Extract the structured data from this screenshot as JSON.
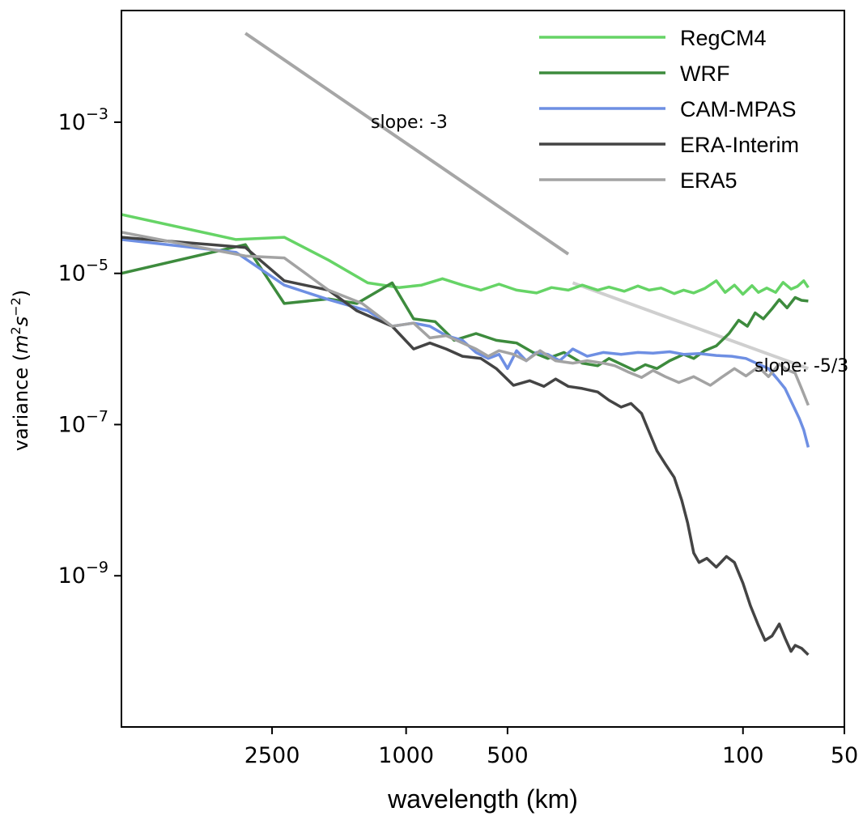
{
  "chart_data": {
    "type": "line",
    "title": "",
    "xlabel": "wavelength (km)",
    "ylabel": "variance",
    "ylabel_units": "(m²s⁻²)",
    "x_scale": "log-reciprocal",
    "y_scale": "log",
    "xlim": [
      7000,
      50
    ],
    "ylim": [
      1e-11,
      0.03
    ],
    "x_ticks": [
      2500,
      1000,
      500,
      100,
      50
    ],
    "x_tick_labels": [
      "2500",
      "1000",
      "500",
      "100",
      "50"
    ],
    "y_ticks": [
      0.001,
      1e-05,
      1e-07,
      1e-09
    ],
    "y_tick_labels": [
      {
        "base": "10",
        "exp": "−3"
      },
      {
        "base": "10",
        "exp": "−5"
      },
      {
        "base": "10",
        "exp": "−7"
      },
      {
        "base": "10",
        "exp": "−9"
      }
    ],
    "grid": false,
    "legend_position": "top-right",
    "series": [
      {
        "name": "RegCM4",
        "color": "#66d466",
        "points": [
          [
            7000,
            6e-05
          ],
          [
            3200,
            2.8e-05
          ],
          [
            2300,
            3e-05
          ],
          [
            1700,
            1.5e-05
          ],
          [
            1300,
            7.5e-06
          ],
          [
            1050,
            6.5e-06
          ],
          [
            900,
            7e-06
          ],
          [
            780,
            8.5e-06
          ],
          [
            680,
            7e-06
          ],
          [
            600,
            6e-06
          ],
          [
            530,
            7.2e-06
          ],
          [
            470,
            6e-06
          ],
          [
            410,
            5.5e-06
          ],
          [
            370,
            6.5e-06
          ],
          [
            330,
            6e-06
          ],
          [
            300,
            7e-06
          ],
          [
            270,
            6e-06
          ],
          [
            250,
            6.6e-06
          ],
          [
            225,
            5.8e-06
          ],
          [
            205,
            6.8e-06
          ],
          [
            190,
            6e-06
          ],
          [
            175,
            6.4e-06
          ],
          [
            160,
            5.4e-06
          ],
          [
            150,
            6e-06
          ],
          [
            140,
            5.5e-06
          ],
          [
            130,
            6.3e-06
          ],
          [
            120,
            8e-06
          ],
          [
            113,
            5.6e-06
          ],
          [
            106,
            7e-06
          ],
          [
            100,
            5.3e-06
          ],
          [
            94,
            6.9e-06
          ],
          [
            90,
            5.6e-06
          ],
          [
            85,
            6.4e-06
          ],
          [
            80,
            5.6e-06
          ],
          [
            76,
            7.6e-06
          ],
          [
            72,
            6.2e-06
          ],
          [
            69,
            6.7e-06
          ],
          [
            66,
            8e-06
          ],
          [
            64,
            6.5e-06
          ]
        ]
      },
      {
        "name": "WRF",
        "color": "#3d8b3d",
        "points": [
          [
            7000,
            1e-05
          ],
          [
            3000,
            2.4e-05
          ],
          [
            2300,
            4e-06
          ],
          [
            1700,
            4.6e-06
          ],
          [
            1400,
            4e-06
          ],
          [
            1100,
            7.5e-06
          ],
          [
            950,
            2.5e-06
          ],
          [
            820,
            2.3e-06
          ],
          [
            720,
            1.3e-06
          ],
          [
            620,
            1.6e-06
          ],
          [
            540,
            1.3e-06
          ],
          [
            470,
            1.2e-06
          ],
          [
            420,
            9e-07
          ],
          [
            380,
            7.5e-07
          ],
          [
            340,
            9e-07
          ],
          [
            300,
            6.5e-07
          ],
          [
            270,
            6e-07
          ],
          [
            250,
            7.5e-07
          ],
          [
            230,
            6.3e-07
          ],
          [
            210,
            5.2e-07
          ],
          [
            195,
            6.2e-07
          ],
          [
            180,
            5.5e-07
          ],
          [
            165,
            7e-07
          ],
          [
            150,
            8.5e-07
          ],
          [
            140,
            7.5e-07
          ],
          [
            130,
            9.5e-07
          ],
          [
            120,
            1.1e-06
          ],
          [
            110,
            1.6e-06
          ],
          [
            103,
            2.4e-06
          ],
          [
            97,
            2e-06
          ],
          [
            92,
            3e-06
          ],
          [
            87,
            2.5e-06
          ],
          [
            82,
            3.4e-06
          ],
          [
            78,
            4.5e-06
          ],
          [
            74,
            3.5e-06
          ],
          [
            70,
            4.8e-06
          ],
          [
            67,
            4.4e-06
          ],
          [
            64,
            4.3e-06
          ]
        ]
      },
      {
        "name": "CAM-MPAS",
        "color": "#6e8fe3",
        "points": [
          [
            7000,
            2.8e-05
          ],
          [
            3200,
            1.9e-05
          ],
          [
            2300,
            7e-06
          ],
          [
            1700,
            4.5e-06
          ],
          [
            1300,
            3.2e-06
          ],
          [
            1100,
            2e-06
          ],
          [
            950,
            2.2e-06
          ],
          [
            850,
            2e-06
          ],
          [
            760,
            1.5e-06
          ],
          [
            680,
            1.3e-06
          ],
          [
            620,
            9e-07
          ],
          [
            570,
            7.5e-07
          ],
          [
            530,
            8.5e-07
          ],
          [
            500,
            5.5e-07
          ],
          [
            470,
            9.5e-07
          ],
          [
            440,
            7e-07
          ],
          [
            410,
            9e-07
          ],
          [
            380,
            8.5e-07
          ],
          [
            350,
            7e-07
          ],
          [
            320,
            1e-06
          ],
          [
            290,
            8e-07
          ],
          [
            260,
            9e-07
          ],
          [
            230,
            8.5e-07
          ],
          [
            205,
            9e-07
          ],
          [
            185,
            8.8e-07
          ],
          [
            165,
            9.2e-07
          ],
          [
            150,
            8.5e-07
          ],
          [
            135,
            8.7e-07
          ],
          [
            120,
            8.2e-07
          ],
          [
            108,
            8e-07
          ],
          [
            98,
            7.5e-07
          ],
          [
            90,
            6.3e-07
          ],
          [
            84,
            5.5e-07
          ],
          [
            79,
            4e-07
          ],
          [
            75,
            3e-07
          ],
          [
            71,
            1.8e-07
          ],
          [
            68,
            1.2e-07
          ],
          [
            66,
            8.5e-08
          ],
          [
            64,
            5e-08
          ]
        ]
      },
      {
        "name": "ERA-Interim",
        "color": "#444444",
        "points": [
          [
            7000,
            3e-05
          ],
          [
            3000,
            2.2e-05
          ],
          [
            2300,
            8e-06
          ],
          [
            1700,
            6e-06
          ],
          [
            1400,
            3.2e-06
          ],
          [
            1100,
            2e-06
          ],
          [
            950,
            1e-06
          ],
          [
            850,
            1.2e-06
          ],
          [
            760,
            1e-06
          ],
          [
            680,
            8e-07
          ],
          [
            600,
            7.5e-07
          ],
          [
            540,
            5.5e-07
          ],
          [
            480,
            3.3e-07
          ],
          [
            430,
            3.8e-07
          ],
          [
            390,
            3.2e-07
          ],
          [
            360,
            4e-07
          ],
          [
            330,
            3.2e-07
          ],
          [
            300,
            3e-07
          ],
          [
            270,
            2.7e-07
          ],
          [
            250,
            2.1e-07
          ],
          [
            230,
            1.7e-07
          ],
          [
            215,
            1.9e-07
          ],
          [
            200,
            1.4e-07
          ],
          [
            190,
            8e-08
          ],
          [
            180,
            4.5e-08
          ],
          [
            170,
            3e-08
          ],
          [
            160,
            2e-08
          ],
          [
            152,
            1e-08
          ],
          [
            146,
            5e-09
          ],
          [
            140,
            2e-09
          ],
          [
            135,
            1.5e-09
          ],
          [
            128,
            1.7e-09
          ],
          [
            120,
            1.3e-09
          ],
          [
            112,
            1.8e-09
          ],
          [
            106,
            1.5e-09
          ],
          [
            100,
            8e-10
          ],
          [
            95,
            4e-10
          ],
          [
            90,
            2.2e-10
          ],
          [
            86,
            1.4e-10
          ],
          [
            82,
            1.6e-10
          ],
          [
            78,
            2.3e-10
          ],
          [
            75,
            1.5e-10
          ],
          [
            72,
            1e-10
          ],
          [
            70,
            1.2e-10
          ],
          [
            67,
            1.1e-10
          ],
          [
            64,
            9e-11
          ]
        ]
      },
      {
        "name": "ERA5",
        "color": "#a3a3a3",
        "points": [
          [
            7000,
            3.5e-05
          ],
          [
            3000,
            1.7e-05
          ],
          [
            2300,
            1.6e-05
          ],
          [
            1700,
            6e-06
          ],
          [
            1350,
            4e-06
          ],
          [
            1100,
            2e-06
          ],
          [
            950,
            2.2e-06
          ],
          [
            850,
            1.4e-06
          ],
          [
            760,
            1.5e-06
          ],
          [
            680,
            1.2e-06
          ],
          [
            620,
            1e-06
          ],
          [
            570,
            8e-07
          ],
          [
            530,
            9.5e-07
          ],
          [
            480,
            8.5e-07
          ],
          [
            440,
            7e-07
          ],
          [
            400,
            9.5e-07
          ],
          [
            360,
            7e-07
          ],
          [
            320,
            6.5e-07
          ],
          [
            290,
            7e-07
          ],
          [
            260,
            6.5e-07
          ],
          [
            240,
            6e-07
          ],
          [
            220,
            5e-07
          ],
          [
            200,
            4.2e-07
          ],
          [
            185,
            5.2e-07
          ],
          [
            170,
            4.3e-07
          ],
          [
            155,
            3.6e-07
          ],
          [
            140,
            4.3e-07
          ],
          [
            125,
            3.3e-07
          ],
          [
            115,
            4.3e-07
          ],
          [
            106,
            5.5e-07
          ],
          [
            98,
            4.4e-07
          ],
          [
            90,
            5.8e-07
          ],
          [
            84,
            4.3e-07
          ],
          [
            78,
            6.3e-07
          ],
          [
            74,
            5.3e-07
          ],
          [
            70,
            4.8e-07
          ],
          [
            67,
            3e-07
          ],
          [
            64,
            1.8e-07
          ]
        ]
      }
    ],
    "reference_lines": [
      {
        "label": "slope: -3",
        "color": "#a6a6a6",
        "points": [
          [
            3000,
            0.015
          ],
          [
            330,
            1.8e-05
          ]
        ]
      },
      {
        "label": "slope: -5/3",
        "color": "#cfcfcf",
        "points": [
          [
            320,
            7.5e-06
          ],
          [
            64,
            5.5e-07
          ]
        ]
      }
    ]
  }
}
